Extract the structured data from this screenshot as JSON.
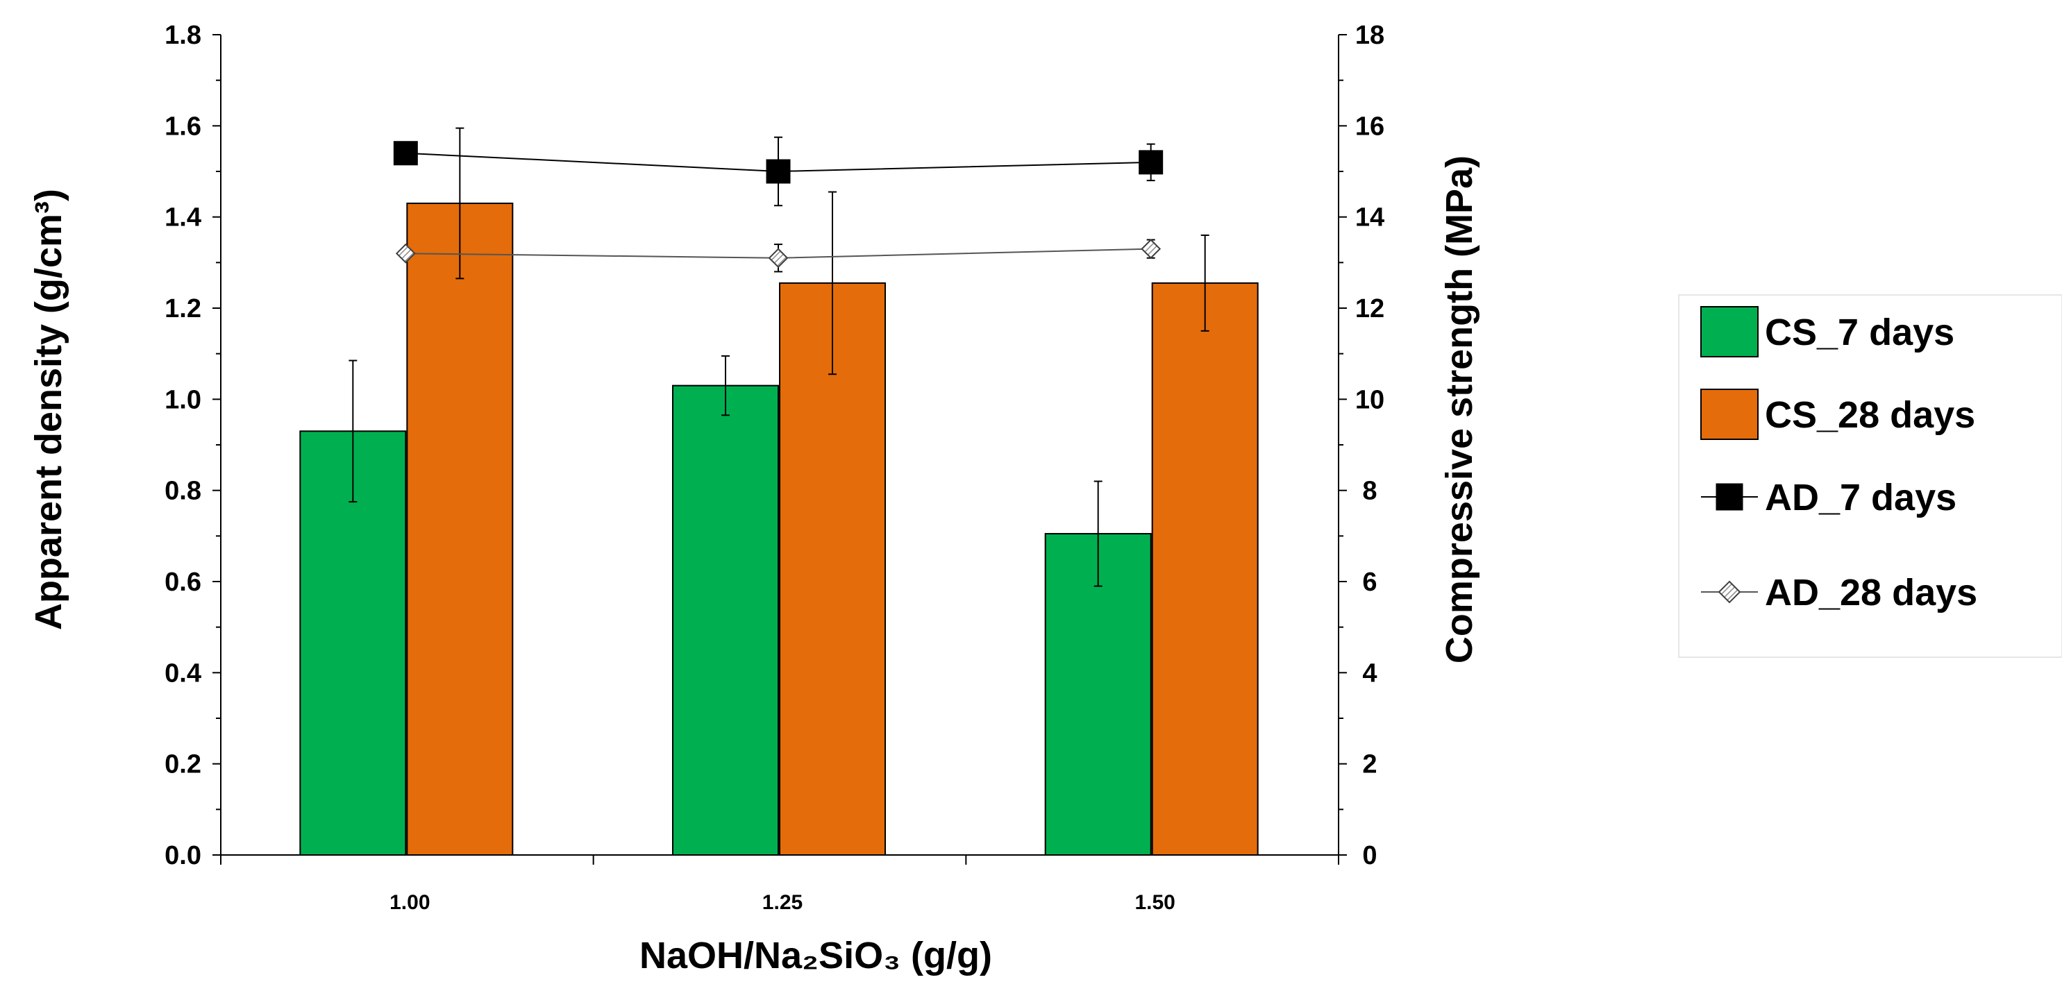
{
  "chart_data": {
    "type": "bar",
    "categories": [
      "1.00",
      "1.25",
      "1.50"
    ],
    "xlabel": "NaOH/Na₂SiO₃ (g/g)",
    "ylabel_left": "Apparent density (g/cm³)",
    "ylabel_right": "Compressive strength (MPa)",
    "ylim_left": [
      0,
      1.8
    ],
    "ylim_right": [
      0,
      18
    ],
    "yticks_left": [
      "0.0",
      "0.2",
      "0.4",
      "0.6",
      "0.8",
      "1.0",
      "1.2",
      "1.4",
      "1.6",
      "1.8"
    ],
    "yticks_right": [
      "0",
      "2",
      "4",
      "6",
      "8",
      "10",
      "12",
      "14",
      "16",
      "18"
    ],
    "legend_position": "right",
    "bar_series": [
      {
        "name": "CS_7 days",
        "axis": "right",
        "color": "#00b050",
        "values": [
          9.3,
          10.3,
          7.05
        ],
        "errors": [
          1.55,
          0.65,
          1.15
        ]
      },
      {
        "name": "CS_28 days",
        "axis": "right",
        "color": "#e46c0a",
        "values": [
          14.3,
          12.55,
          12.55
        ],
        "errors": [
          1.65,
          2.0,
          1.05
        ]
      }
    ],
    "line_series": [
      {
        "name": "AD_7 days",
        "axis": "left",
        "marker": "square",
        "color": "#000000",
        "values": [
          1.54,
          1.5,
          1.52
        ],
        "errors": [
          0.0,
          0.075,
          0.04
        ]
      },
      {
        "name": "AD_28 days",
        "axis": "left",
        "marker": "diamond",
        "color": "#bfbfbf",
        "values": [
          1.32,
          1.31,
          1.33
        ],
        "errors": [
          0.0,
          0.03,
          0.02
        ]
      }
    ]
  }
}
